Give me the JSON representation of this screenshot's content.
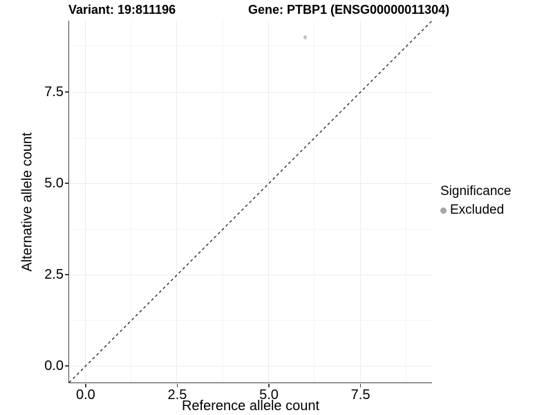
{
  "chart_data": {
    "type": "scatter",
    "title_left": "Variant: 19:811196",
    "title_right": "Gene: PTBP1 (ENSG00000011304)",
    "xlabel": "Reference allele count",
    "ylabel": "Alternative allele count",
    "xlim": [
      -0.45,
      9.45
    ],
    "ylim": [
      -0.45,
      9.45
    ],
    "x_ticks": [
      0,
      2.5,
      5,
      7.5
    ],
    "x_tick_labels": [
      "0.0",
      "2.5",
      "5.0",
      "7.5"
    ],
    "x_minor_ticks": [
      1.25,
      3.75,
      6.25,
      8.75
    ],
    "y_ticks": [
      0,
      2.5,
      5,
      7.5
    ],
    "y_tick_labels": [
      "0.0",
      "2.5",
      "5.0",
      "7.5"
    ],
    "y_minor_ticks": [
      1.25,
      3.75,
      6.25,
      8.75
    ],
    "grid": true,
    "points": [
      {
        "x": 6,
        "y": 9,
        "series": "Excluded"
      }
    ],
    "reference_line": {
      "type": "abline",
      "slope": 1,
      "intercept": 0,
      "style": "dashed",
      "color": "#1a1a1a"
    },
    "legend": {
      "position": "right",
      "title": "Significance",
      "items": [
        {
          "label": "Excluded",
          "color": "#a6a6a6",
          "marker": "circle"
        }
      ]
    },
    "colors": {
      "point": "#c4c4c4",
      "grid_major": "#ececec",
      "grid_minor": "#f4f4f4",
      "axis_line": "#404040",
      "text": "#000000",
      "background": "#ffffff"
    }
  }
}
